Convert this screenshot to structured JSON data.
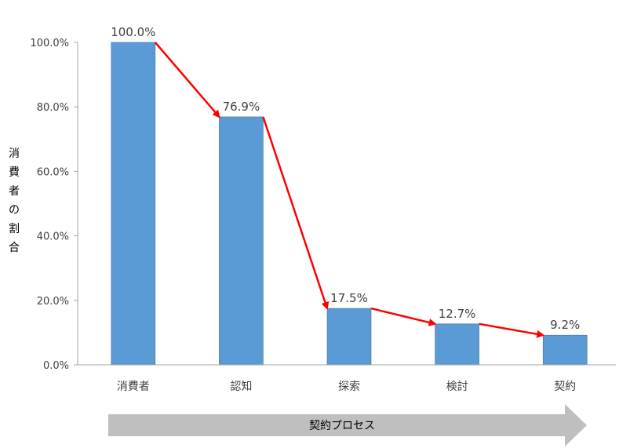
{
  "chart_data": {
    "type": "bar",
    "title": "",
    "xlabel": "",
    "ylabel": "消費者の割合",
    "categories": [
      "消費者",
      "認知",
      "探索",
      "検討",
      "契約"
    ],
    "values": [
      100.0,
      76.9,
      17.5,
      12.7,
      9.2
    ],
    "data_labels": [
      "100.0%",
      "76.9%",
      "17.5%",
      "12.7%",
      "9.2%"
    ],
    "ylim": [
      0,
      100
    ],
    "yticks": [
      0,
      20,
      40,
      60,
      80,
      100
    ],
    "ytick_labels": [
      "0.0%",
      "20.0%",
      "40.0%",
      "60.0%",
      "80.0%",
      "100.0%"
    ],
    "grid": false,
    "legend": "none",
    "bar_color": "#5B9BD5",
    "arrow_color": "#FF0000",
    "annotations": {
      "process_arrow_label": "契約プロセス",
      "process_arrow_color": "#BFBFBF"
    }
  }
}
